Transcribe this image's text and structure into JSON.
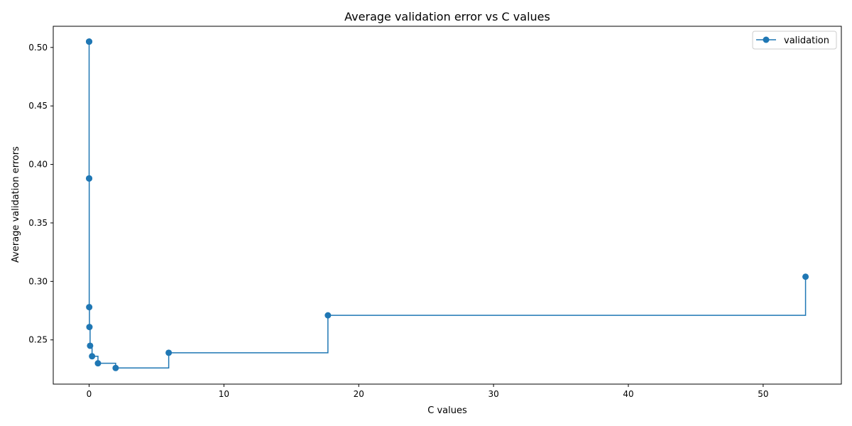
{
  "chart_data": {
    "type": "line",
    "title": "Average validation error vs C values",
    "xlabel": "C values",
    "ylabel": "Average validation errors",
    "xlim": [
      -2.66,
      55.8
    ],
    "ylim": [
      0.2122,
      0.5181
    ],
    "xticks": [
      0,
      10,
      20,
      30,
      40,
      50
    ],
    "yticks": [
      0.25,
      0.3,
      0.35,
      0.4,
      0.45,
      0.5
    ],
    "xtick_labels": [
      "0",
      "10",
      "20",
      "30",
      "40",
      "50"
    ],
    "ytick_labels": [
      "0.25",
      "0.30",
      "0.35",
      "0.40",
      "0.45",
      "0.50"
    ],
    "grid": false,
    "legend_position": "top-right",
    "step": "post",
    "series": [
      {
        "name": "validation",
        "color": "#1f77b4",
        "marker": "circle",
        "x": [
          0.0001,
          0.0003,
          0.0009,
          0.0027,
          0.0081,
          0.0243,
          0.0729,
          0.2187,
          0.6561,
          1.9683,
          5.9049,
          17.7147,
          53.1441
        ],
        "y": [
          0.505,
          0.505,
          0.388,
          0.388,
          0.278,
          0.261,
          0.245,
          0.236,
          0.23,
          0.226,
          0.239,
          0.271,
          0.304
        ]
      }
    ]
  }
}
